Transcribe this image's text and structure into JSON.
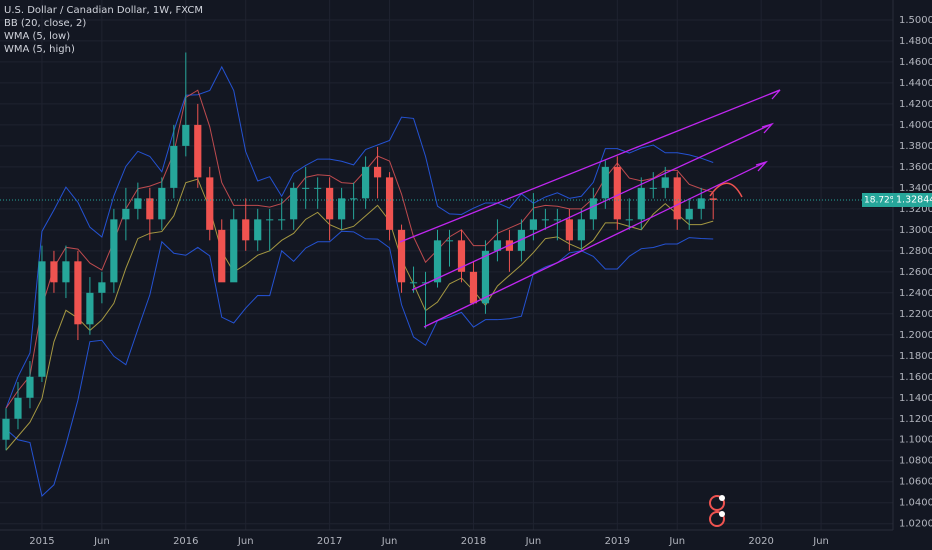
{
  "chart_data": {
    "type": "candlestick",
    "title": "U.S. Dollar / Canadian Dollar, 1W, FXCM",
    "indicators": [
      "BB (20, close, 2)",
      "WMA (5, low)",
      "WMA (5, high)"
    ],
    "up_color": "#26a69a",
    "down_color": "#ef5350",
    "open": [
      1.1,
      1.12,
      1.14,
      1.16,
      1.27,
      1.25,
      1.27,
      1.21,
      1.24,
      1.25,
      1.31,
      1.32,
      1.33,
      1.31,
      1.34,
      1.38,
      1.4,
      1.35,
      1.3,
      1.25,
      1.31,
      1.29,
      1.31,
      1.31,
      1.31,
      1.34,
      1.34,
      1.34,
      1.31,
      1.33,
      1.33,
      1.36,
      1.35,
      1.3,
      1.25,
      1.25,
      1.25,
      1.29,
      1.29,
      1.26,
      1.23,
      1.28,
      1.29,
      1.28,
      1.3,
      1.31,
      1.31,
      1.31,
      1.29,
      1.31,
      1.33,
      1.36,
      1.31,
      1.31,
      1.34,
      1.34,
      1.35,
      1.31,
      1.32,
      1.33
    ],
    "high": [
      1.13,
      1.155,
      1.175,
      1.285,
      1.28,
      1.285,
      1.28,
      1.255,
      1.26,
      1.32,
      1.34,
      1.345,
      1.34,
      1.35,
      1.4,
      1.469,
      1.42,
      1.36,
      1.31,
      1.32,
      1.33,
      1.32,
      1.32,
      1.33,
      1.345,
      1.36,
      1.35,
      1.35,
      1.34,
      1.345,
      1.37,
      1.379,
      1.355,
      1.305,
      1.265,
      1.26,
      1.3,
      1.3,
      1.3,
      1.27,
      1.29,
      1.31,
      1.3,
      1.31,
      1.335,
      1.32,
      1.32,
      1.32,
      1.32,
      1.34,
      1.366,
      1.37,
      1.33,
      1.35,
      1.355,
      1.36,
      1.355,
      1.33,
      1.34,
      1.335
    ],
    "low": [
      1.09,
      1.11,
      1.13,
      1.155,
      1.24,
      1.235,
      1.195,
      1.2,
      1.23,
      1.24,
      1.29,
      1.31,
      1.29,
      1.3,
      1.33,
      1.37,
      1.34,
      1.29,
      1.252,
      1.255,
      1.28,
      1.28,
      1.28,
      1.3,
      1.3,
      1.32,
      1.32,
      1.29,
      1.3,
      1.31,
      1.32,
      1.33,
      1.29,
      1.24,
      1.24,
      1.206,
      1.245,
      1.265,
      1.25,
      1.229,
      1.22,
      1.27,
      1.26,
      1.27,
      1.29,
      1.3,
      1.29,
      1.28,
      1.28,
      1.3,
      1.32,
      1.3,
      1.3,
      1.3,
      1.33,
      1.33,
      1.3,
      1.3,
      1.31,
      1.31
    ],
    "close": [
      1.12,
      1.14,
      1.16,
      1.27,
      1.25,
      1.27,
      1.21,
      1.24,
      1.25,
      1.31,
      1.32,
      1.33,
      1.31,
      1.34,
      1.38,
      1.4,
      1.35,
      1.3,
      1.25,
      1.31,
      1.29,
      1.31,
      1.31,
      1.31,
      1.34,
      1.34,
      1.34,
      1.31,
      1.33,
      1.33,
      1.36,
      1.35,
      1.3,
      1.25,
      1.25,
      1.25,
      1.29,
      1.29,
      1.26,
      1.23,
      1.28,
      1.29,
      1.28,
      1.3,
      1.31,
      1.31,
      1.31,
      1.29,
      1.31,
      1.33,
      1.36,
      1.31,
      1.31,
      1.34,
      1.34,
      1.35,
      1.31,
      1.32,
      1.33,
      1.32844
    ],
    "change_label": "18.72%",
    "xlim": [
      -0.5,
      74
    ],
    "xticks": [
      {
        "value": 3,
        "label": "2015"
      },
      {
        "value": 8,
        "label": "Jun"
      },
      {
        "value": 15,
        "label": "2016"
      },
      {
        "value": 20,
        "label": "Jun"
      },
      {
        "value": 27,
        "label": "2017"
      },
      {
        "value": 32,
        "label": "Jun"
      },
      {
        "value": 39,
        "label": "2018"
      },
      {
        "value": 44,
        "label": "Jun"
      },
      {
        "value": 51,
        "label": "2019"
      },
      {
        "value": 56,
        "label": "Jun"
      },
      {
        "value": 63,
        "label": "2020"
      },
      {
        "value": 68,
        "label": "Jun"
      }
    ],
    "ylim": [
      1.014,
      1.519
    ],
    "yticks": [
      {
        "value": 1.02,
        "label": "1.02000"
      },
      {
        "value": 1.04,
        "label": "1.04000"
      },
      {
        "value": 1.06,
        "label": "1.06000"
      },
      {
        "value": 1.08,
        "label": "1.08000"
      },
      {
        "value": 1.1,
        "label": "1.10000"
      },
      {
        "value": 1.12,
        "label": "1.12000"
      },
      {
        "value": 1.14,
        "label": "1.14000"
      },
      {
        "value": 1.16,
        "label": "1.16000"
      },
      {
        "value": 1.18,
        "label": "1.18000"
      },
      {
        "value": 1.2,
        "label": "1.20000"
      },
      {
        "value": 1.22,
        "label": "1.22000"
      },
      {
        "value": 1.24,
        "label": "1.24000"
      },
      {
        "value": 1.26,
        "label": "1.26000"
      },
      {
        "value": 1.28,
        "label": "1.28000"
      },
      {
        "value": 1.3,
        "label": "1.30000"
      },
      {
        "value": 1.32,
        "label": "1.32000"
      },
      {
        "value": 1.34,
        "label": "1.34000"
      },
      {
        "value": 1.36,
        "label": "1.36000"
      },
      {
        "value": 1.38,
        "label": "1.38000"
      },
      {
        "value": 1.4,
        "label": "1.40000"
      },
      {
        "value": 1.42,
        "label": "1.42000"
      },
      {
        "value": 1.44,
        "label": "1.44000"
      },
      {
        "value": 1.46,
        "label": "1.46000"
      },
      {
        "value": 1.48,
        "label": "1.48000"
      },
      {
        "value": 1.5,
        "label": "1.50000"
      }
    ],
    "grid": true
  }
}
